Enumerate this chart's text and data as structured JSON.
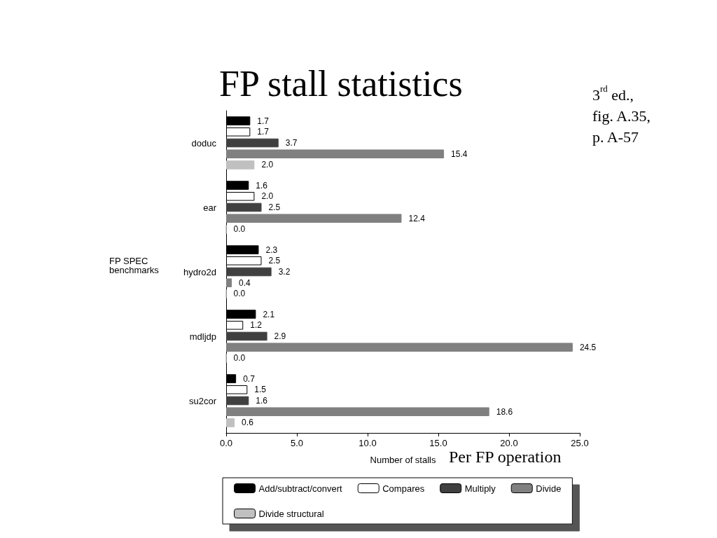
{
  "chart_data": {
    "type": "bar",
    "orientation": "horizontal",
    "title": "FP stall statistics",
    "xlabel": "Number of stalls",
    "ylabel": "FP SPEC benchmarks",
    "annotations": [
      "3$^{rd}$ ed.,\nfig. A.35,\np. A-57",
      "Per FP operation"
    ],
    "categories": [
      "doduc",
      "ear",
      "hydro2d",
      "mdljdp",
      "su2cor"
    ],
    "series": [
      {
        "name": "Add/subtract/convert",
        "color": "#000000",
        "values": [
          1.7,
          1.6,
          2.3,
          2.1,
          0.7
        ],
        "value_labels": [
          "1.7",
          "1.6",
          "2.3",
          "2.1",
          "0.7"
        ]
      },
      {
        "name": "Compares",
        "color": "#ffffff",
        "values": [
          1.7,
          2.0,
          2.5,
          1.2,
          1.5
        ],
        "value_labels": [
          "1.7",
          "2.0",
          "2.5",
          "1.2",
          "1.5"
        ]
      },
      {
        "name": "Multiply",
        "color": "#404040",
        "values": [
          3.7,
          2.5,
          3.2,
          2.9,
          1.6
        ],
        "value_labels": [
          "3.7",
          "2.5",
          "3.2",
          "2.9",
          "1.6"
        ]
      },
      {
        "name": "Divide",
        "color": "#808080",
        "values": [
          15.4,
          12.4,
          0.4,
          24.5,
          18.6
        ],
        "value_labels": [
          "15.4",
          "12.4",
          "0.4",
          "24.5",
          "18.6"
        ]
      },
      {
        "name": "Divide structural",
        "color": "#c0c0c0",
        "values": [
          2.0,
          0.0,
          0.0,
          0.0,
          0.6
        ],
        "value_labels": [
          "2.0",
          "0.0",
          "0.0",
          "0.0",
          "0.6"
        ]
      }
    ],
    "xlim": [
      0,
      25
    ],
    "xticks": [
      {
        "value": 0,
        "label": "0.0"
      },
      {
        "value": 5,
        "label": "5.0"
      },
      {
        "value": 10,
        "label": "10.0"
      },
      {
        "value": 15,
        "label": "15.0"
      },
      {
        "value": 20,
        "label": "20.0"
      },
      {
        "value": 25,
        "label": "25.0"
      }
    ],
    "grid": false,
    "legend": "bottom"
  }
}
